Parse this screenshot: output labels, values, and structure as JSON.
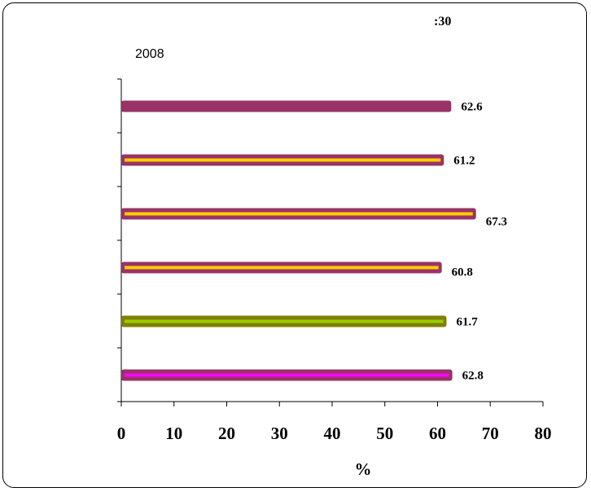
{
  "title": ":30",
  "subtitle": "2008",
  "chart_data": {
    "type": "bar",
    "orientation": "horizontal",
    "title": ":30",
    "subtitle": "2008",
    "xlabel": "%",
    "ylabel": "",
    "xlim": [
      0,
      80
    ],
    "x_ticks": [
      "0",
      "10",
      "20",
      "30",
      "40",
      "50",
      "60",
      "70",
      "80"
    ],
    "values": [
      62.6,
      61.2,
      67.3,
      60.8,
      61.7,
      62.8
    ],
    "value_labels": [
      "62.6",
      "61.2",
      "67.3",
      "60.8",
      "61.7",
      "62.8"
    ],
    "bar_colors": [
      {
        "outer": "#993366",
        "inner": "#993366"
      },
      {
        "outer": "#993366",
        "inner": "#ffcc00"
      },
      {
        "outer": "#993366",
        "inner": "#ffcc00"
      },
      {
        "outer": "#993366",
        "inner": "#ffcc00"
      },
      {
        "outer": "#808000",
        "inner": "#99cc00"
      },
      {
        "outer": "#993366",
        "inner": "#ff00ff"
      }
    ],
    "grid": false,
    "legend": "none"
  }
}
